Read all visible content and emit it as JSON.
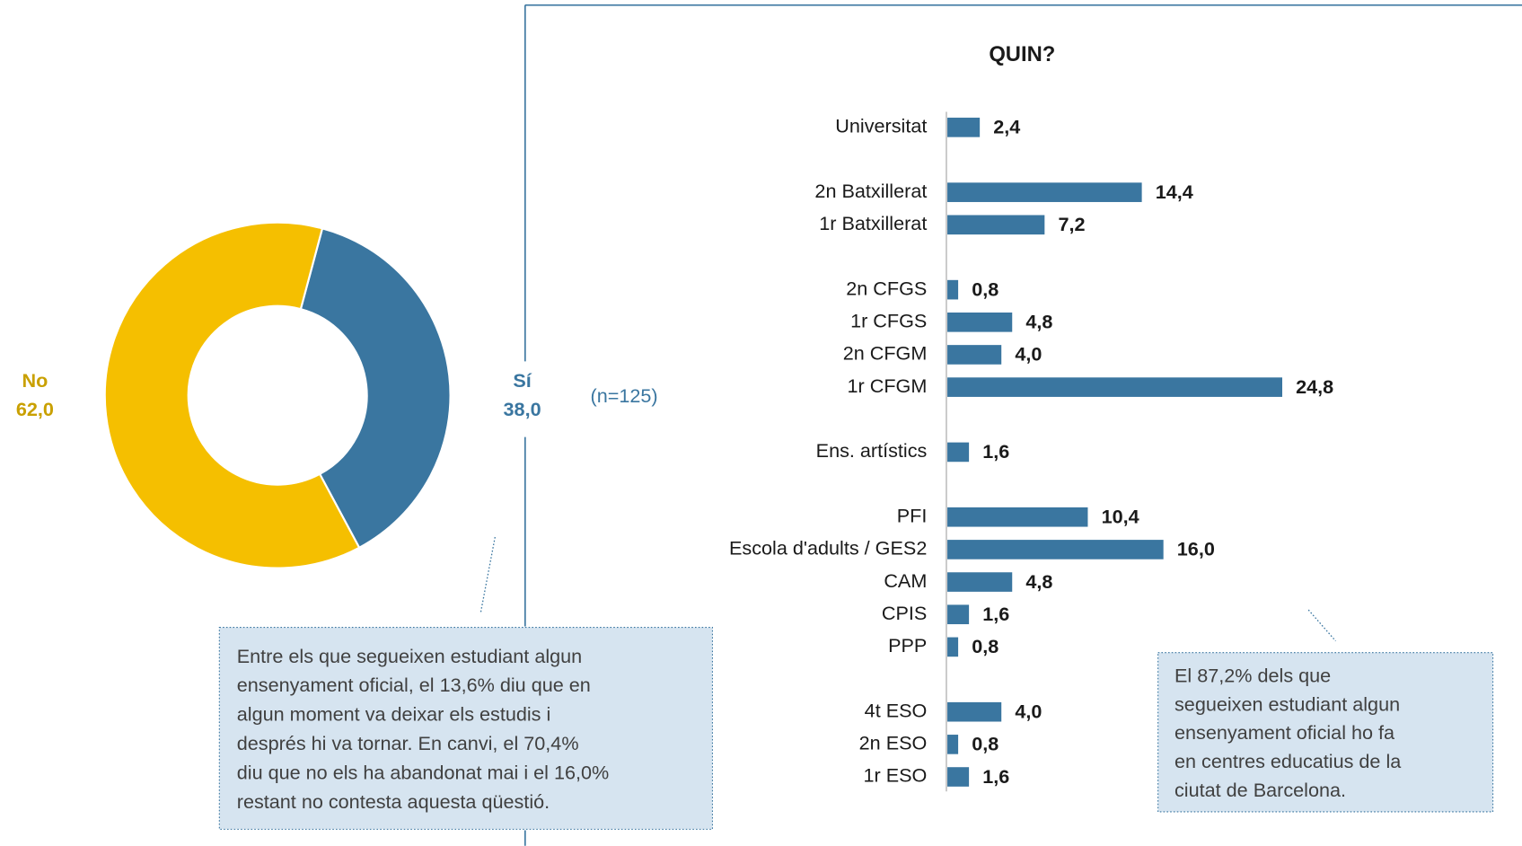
{
  "chart_data": [
    {
      "type": "pie",
      "donut": true,
      "categories": [
        "Sí",
        "No"
      ],
      "values": [
        38.0,
        62.0
      ],
      "value_labels": [
        "38,0",
        "62,0"
      ],
      "colors": [
        "#3a76a0",
        "#f5bf00"
      ],
      "note": "(n=125)",
      "annotation": [
        "Entre els que segueixen estudiant algun",
        "ensenyament oficial, el 13,6% diu que en",
        "algun moment va deixar els estudis i",
        "després hi va tornar. En canvi, el 70,4%",
        "diu que no els ha abandonat mai i el 16,0%",
        "restant no contesta aquesta qüestió."
      ]
    },
    {
      "type": "bar",
      "orientation": "horizontal",
      "title": "QUIN?",
      "color": "#3a76a0",
      "categories": [
        "Universitat",
        null,
        "2n Batxillerat",
        "1r Batxillerat",
        null,
        "2n CFGS",
        "1r CFGS",
        "2n CFGM",
        "1r CFGM",
        null,
        "Ens. artístics",
        null,
        "PFI",
        "Escola d'adults / GES2",
        "CAM",
        "CPIS",
        "PPP",
        null,
        "4t ESO",
        "2n ESO",
        "1r ESO"
      ],
      "values": [
        2.4,
        null,
        14.4,
        7.2,
        null,
        0.8,
        4.8,
        4.0,
        24.8,
        null,
        1.6,
        null,
        10.4,
        16.0,
        4.8,
        1.6,
        0.8,
        null,
        4.0,
        0.8,
        1.6
      ],
      "value_labels": [
        "2,4",
        null,
        "14,4",
        "7,2",
        null,
        "0,8",
        "4,8",
        "4,0",
        "24,8",
        null,
        "1,6",
        null,
        "10,4",
        "16,0",
        "4,8",
        "1,6",
        "0,8",
        null,
        "4,0",
        "0,8",
        "1,6"
      ],
      "annotation": [
        "El 87,2% dels que",
        "segueixen estudiant algun",
        "ensenyament oficial ho fa",
        "en centres educatius de la",
        "ciutat de Barcelona."
      ]
    }
  ]
}
